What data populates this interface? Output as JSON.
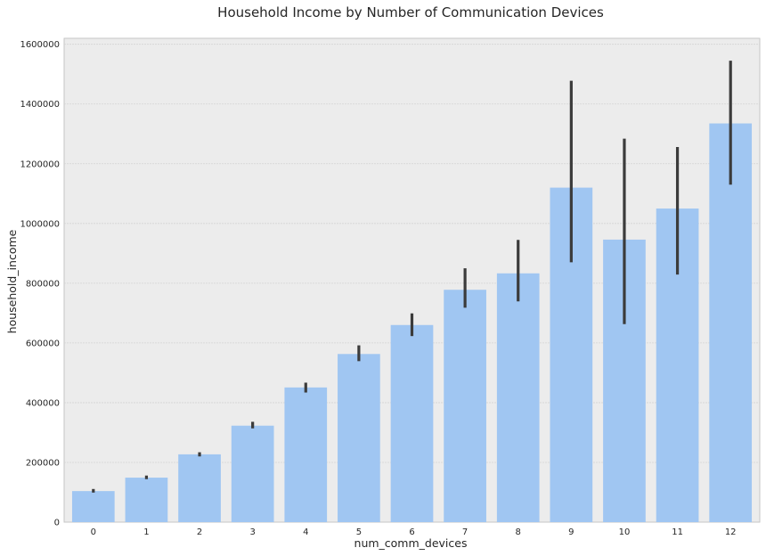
{
  "chart_data": {
    "type": "bar",
    "title": "Household Income by Number of Communication Devices",
    "xlabel": "num_comm_devices",
    "ylabel": "household_income",
    "categories": [
      "0",
      "1",
      "2",
      "3",
      "4",
      "5",
      "6",
      "7",
      "8",
      "9",
      "10",
      "11",
      "12"
    ],
    "values": [
      104000,
      149000,
      227000,
      323000,
      451000,
      563000,
      660000,
      778000,
      833000,
      1120000,
      946000,
      1050000,
      1335000
    ],
    "error_low": [
      99000,
      144000,
      220000,
      314000,
      434000,
      539000,
      623000,
      718000,
      739000,
      870000,
      663000,
      829000,
      1130000
    ],
    "error_high": [
      111000,
      156000,
      234000,
      336000,
      467000,
      592000,
      699000,
      850000,
      945000,
      1478000,
      1284000,
      1256000,
      1545000
    ],
    "ylim": [
      0,
      1620000
    ],
    "yticks": [
      "0",
      "200000",
      "400000",
      "600000",
      "800000",
      "1000000",
      "1200000",
      "1400000",
      "1600000"
    ],
    "ytick_values": [
      0,
      200000,
      400000,
      600000,
      800000,
      1000000,
      1200000,
      1400000,
      1600000
    ],
    "grid": true,
    "colors": {
      "bar": "#a0c6f2",
      "errorbar": "#3b3b3b",
      "plot_background": "#ececec",
      "grid": "#d4d4d4",
      "frame": "#c6c6c6"
    }
  }
}
